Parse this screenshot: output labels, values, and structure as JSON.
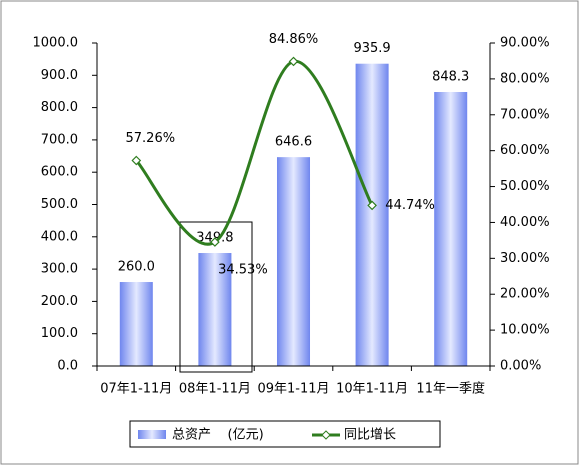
{
  "chart_data": {
    "type": "bar-line",
    "categories": [
      "07年1-11月",
      "08年1-11月",
      "09年1-11月",
      "10年1-11月",
      "11年一季度"
    ],
    "series": [
      {
        "name": "总资产    (亿元)",
        "color": "#6f86ee",
        "type": "bar",
        "values": [
          260.0,
          349.8,
          646.6,
          935.9,
          848.3
        ],
        "value_labels": [
          "260.0",
          "349.8",
          "646.6",
          "935.9",
          "848.3"
        ]
      },
      {
        "name": "同比增长",
        "color": "#2f7d1f",
        "type": "line",
        "axis": "y2",
        "values": [
          57.26,
          34.53,
          84.86,
          44.74,
          null
        ],
        "value_labels": [
          "57.26%",
          "34.53%",
          "84.86%",
          "44.74%",
          null
        ]
      }
    ],
    "ylim": [
      0,
      1000
    ],
    "yticks": [
      {
        "value": 0,
        "label": "0.0"
      },
      {
        "value": 100,
        "label": "100.0"
      },
      {
        "value": 200,
        "label": "200.0"
      },
      {
        "value": 300,
        "label": "300.0"
      },
      {
        "value": 400,
        "label": "400.0"
      },
      {
        "value": 500,
        "label": "500.0"
      },
      {
        "value": 600,
        "label": "600.0"
      },
      {
        "value": 700,
        "label": "700.0"
      },
      {
        "value": 800,
        "label": "800.0"
      },
      {
        "value": 900,
        "label": "900.0"
      },
      {
        "value": 1000,
        "label": "1000.0"
      }
    ],
    "y2lim": [
      0,
      90
    ],
    "y2ticks": [
      {
        "value": 0,
        "label": "0.00%"
      },
      {
        "value": 10,
        "label": "10.00%"
      },
      {
        "value": 20,
        "label": "20.00%"
      },
      {
        "value": 30,
        "label": "30.00%"
      },
      {
        "value": 40,
        "label": "40.00%"
      },
      {
        "value": 50,
        "label": "50.00%"
      },
      {
        "value": 60,
        "label": "60.00%"
      },
      {
        "value": 70,
        "label": "70.00%"
      },
      {
        "value": 80,
        "label": "80.00%"
      },
      {
        "value": 90,
        "label": "90.00%"
      }
    ],
    "legend": "bottom"
  }
}
